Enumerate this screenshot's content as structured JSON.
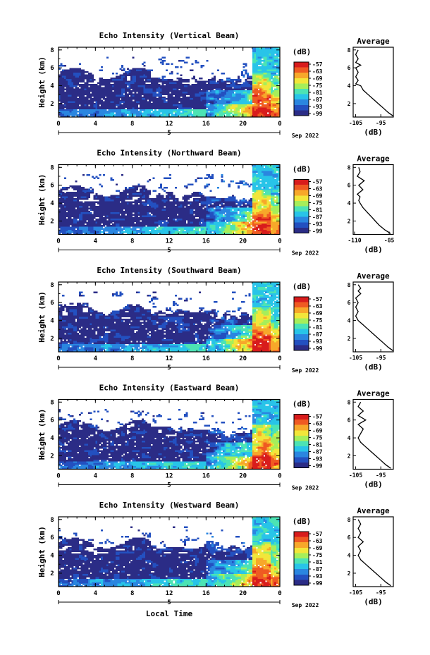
{
  "figure": {
    "x_axis_label": "Local Time",
    "date_label": "Sep 2022",
    "day_label": "5",
    "colorbar_unit": "(dB)",
    "colorbar_ticks": [
      "-57",
      "-63",
      "-69",
      "-75",
      "-81",
      "-87",
      "-93",
      "-99"
    ],
    "colormap": [
      "#2b2c86",
      "#2350c0",
      "#2a86e0",
      "#28c4e8",
      "#4ce3b4",
      "#a6ee5a",
      "#f2e63a",
      "#f7a82a",
      "#ef5a22",
      "#d81c1c"
    ],
    "average_title": "Average",
    "average_xlabel": "(dB)"
  },
  "chart_data": [
    {
      "type": "heatmap",
      "title": "Echo Intensity (Vertical Beam)",
      "ylabel": "Height (km)",
      "x_ticks": [
        "0",
        "4",
        "8",
        "12",
        "16",
        "20",
        "0"
      ],
      "y_ticks": [
        "2",
        "4",
        "6",
        "8"
      ],
      "xlim": [
        0,
        24
      ],
      "ylim": [
        0.5,
        8.3
      ],
      "color_range_db": [
        -99,
        -57
      ],
      "profile": {
        "x_ticks": [
          "-105",
          "-95"
        ],
        "y_ticks": [
          "2",
          "4",
          "6",
          "8"
        ],
        "xlim": [
          -106,
          -90
        ],
        "height_km": [
          0.6,
          1.0,
          1.5,
          2.0,
          2.5,
          3.0,
          3.5,
          4.0,
          4.2,
          4.6,
          5.0,
          5.5,
          6.0,
          6.3,
          6.6,
          7.0,
          7.5,
          8.0
        ],
        "db": [
          -90,
          -92,
          -94,
          -96,
          -98,
          -100,
          -102,
          -103,
          -105,
          -104,
          -105,
          -104,
          -105,
          -103,
          -105,
          -104,
          -105,
          -104
        ]
      }
    },
    {
      "type": "heatmap",
      "title": "Echo Intensity (Northward Beam)",
      "ylabel": "Height (km)",
      "x_ticks": [
        "0",
        "4",
        "8",
        "12",
        "16",
        "20",
        "0"
      ],
      "y_ticks": [
        "2",
        "4",
        "6",
        "8"
      ],
      "xlim": [
        0,
        24
      ],
      "ylim": [
        0.5,
        8.3
      ],
      "color_range_db": [
        -99,
        -57
      ],
      "profile": {
        "x_ticks": [
          "-110",
          "-85"
        ],
        "y_ticks": [
          "2",
          "4",
          "6",
          "8"
        ],
        "xlim": [
          -111,
          -82
        ],
        "height_km": [
          0.6,
          1.0,
          1.5,
          2.0,
          2.5,
          3.0,
          3.5,
          4.0,
          4.3,
          4.7,
          5.0,
          5.5,
          6.0,
          6.5,
          7.0,
          7.5,
          8.0
        ],
        "db": [
          -84,
          -88,
          -92,
          -95,
          -98,
          -101,
          -104,
          -106,
          -107,
          -106,
          -108,
          -104,
          -107,
          -103,
          -108,
          -106,
          -107
        ]
      }
    },
    {
      "type": "heatmap",
      "title": "Echo Intensity (Southward Beam)",
      "ylabel": "Height (km)",
      "x_ticks": [
        "0",
        "4",
        "8",
        "12",
        "16",
        "20",
        "0"
      ],
      "y_ticks": [
        "2",
        "4",
        "6",
        "8"
      ],
      "xlim": [
        0,
        24
      ],
      "ylim": [
        0.5,
        8.3
      ],
      "color_range_db": [
        -99,
        -57
      ],
      "profile": {
        "x_ticks": [
          "-105",
          "-95"
        ],
        "y_ticks": [
          "2",
          "4",
          "6",
          "8"
        ],
        "xlim": [
          -106,
          -90
        ],
        "height_km": [
          0.6,
          1.0,
          1.5,
          2.0,
          2.5,
          3.0,
          3.5,
          4.0,
          4.5,
          5.0,
          5.5,
          6.0,
          6.5,
          7.0,
          7.3,
          7.6,
          8.0
        ],
        "db": [
          -90,
          -92,
          -94,
          -96,
          -98,
          -100,
          -102,
          -104,
          -105,
          -104,
          -105,
          -104,
          -105,
          -103,
          -104,
          -103,
          -104
        ]
      }
    },
    {
      "type": "heatmap",
      "title": "Echo Intensity (Eastward Beam)",
      "ylabel": "Height (km)",
      "x_ticks": [
        "0",
        "4",
        "8",
        "12",
        "16",
        "20",
        "0"
      ],
      "y_ticks": [
        "2",
        "4",
        "6",
        "8"
      ],
      "xlim": [
        0,
        24
      ],
      "ylim": [
        0.5,
        8.3
      ],
      "color_range_db": [
        -99,
        -57
      ],
      "profile": {
        "x_ticks": [
          "-105",
          "-95"
        ],
        "y_ticks": [
          "2",
          "4",
          "6",
          "8"
        ],
        "xlim": [
          -106,
          -90
        ],
        "height_km": [
          0.6,
          1.0,
          1.5,
          2.0,
          2.5,
          3.0,
          3.5,
          4.0,
          4.5,
          5.0,
          5.5,
          6.0,
          6.5,
          7.0,
          7.5,
          8.0
        ],
        "db": [
          -91,
          -93,
          -95,
          -97,
          -99,
          -101,
          -103,
          -104,
          -103,
          -102,
          -104,
          -101,
          -104,
          -102,
          -104,
          -103
        ]
      }
    },
    {
      "type": "heatmap",
      "title": "Echo Intensity (Westward Beam)",
      "ylabel": "Height (km)",
      "x_ticks": [
        "0",
        "4",
        "8",
        "12",
        "16",
        "20",
        "0"
      ],
      "y_ticks": [
        "2",
        "4",
        "6",
        "8"
      ],
      "xlim": [
        0,
        24
      ],
      "ylim": [
        0.5,
        8.3
      ],
      "color_range_db": [
        -99,
        -57
      ],
      "profile": {
        "x_ticks": [
          "-105",
          "-95"
        ],
        "y_ticks": [
          "2",
          "4",
          "6",
          "8"
        ],
        "xlim": [
          -106,
          -90
        ],
        "height_km": [
          0.6,
          1.0,
          1.5,
          2.0,
          2.5,
          3.0,
          3.5,
          4.0,
          4.5,
          5.0,
          5.5,
          6.0,
          6.5,
          7.0,
          7.5,
          8.0
        ],
        "db": [
          -91,
          -93,
          -95,
          -97,
          -99,
          -101,
          -103,
          -104,
          -103,
          -104,
          -102,
          -104,
          -103,
          -104,
          -103,
          -104
        ]
      }
    }
  ]
}
